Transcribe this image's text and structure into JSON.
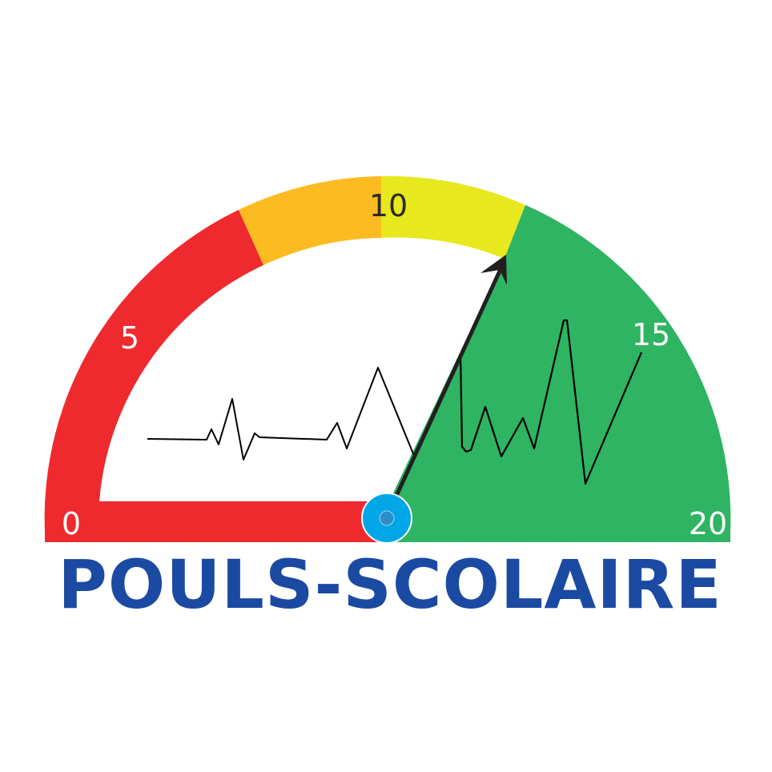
{
  "logo": {
    "title": "POULS-SCOLAIRE",
    "title_color": "#1b4aa3",
    "scale_labels": [
      "0",
      "5",
      "10",
      "15",
      "20"
    ],
    "scale_label_colors": [
      "#ffffff",
      "#ffffff",
      "#2b2b2b",
      "#ffffff",
      "#ffffff"
    ],
    "scale_min": 0,
    "scale_max": 20,
    "needle_value": 12.6,
    "zones": [
      {
        "name": "red",
        "from": 0,
        "to": 7.8,
        "color": "#ee2a2f"
      },
      {
        "name": "orange",
        "from": 7.8,
        "to": 10,
        "color": "#fdbb22"
      },
      {
        "name": "yellow",
        "from": 10,
        "to": 12.7,
        "color": "#e8e81e"
      },
      {
        "name": "green",
        "from": 12.7,
        "to": 20,
        "color": "#2eb462"
      }
    ],
    "needle_color": "#231f20",
    "hub_color": "#00a6e6",
    "pulse_line_color": "#000000",
    "icons": [
      "gauge-icon",
      "heartbeat-line-icon",
      "needle-arrow-icon"
    ]
  }
}
